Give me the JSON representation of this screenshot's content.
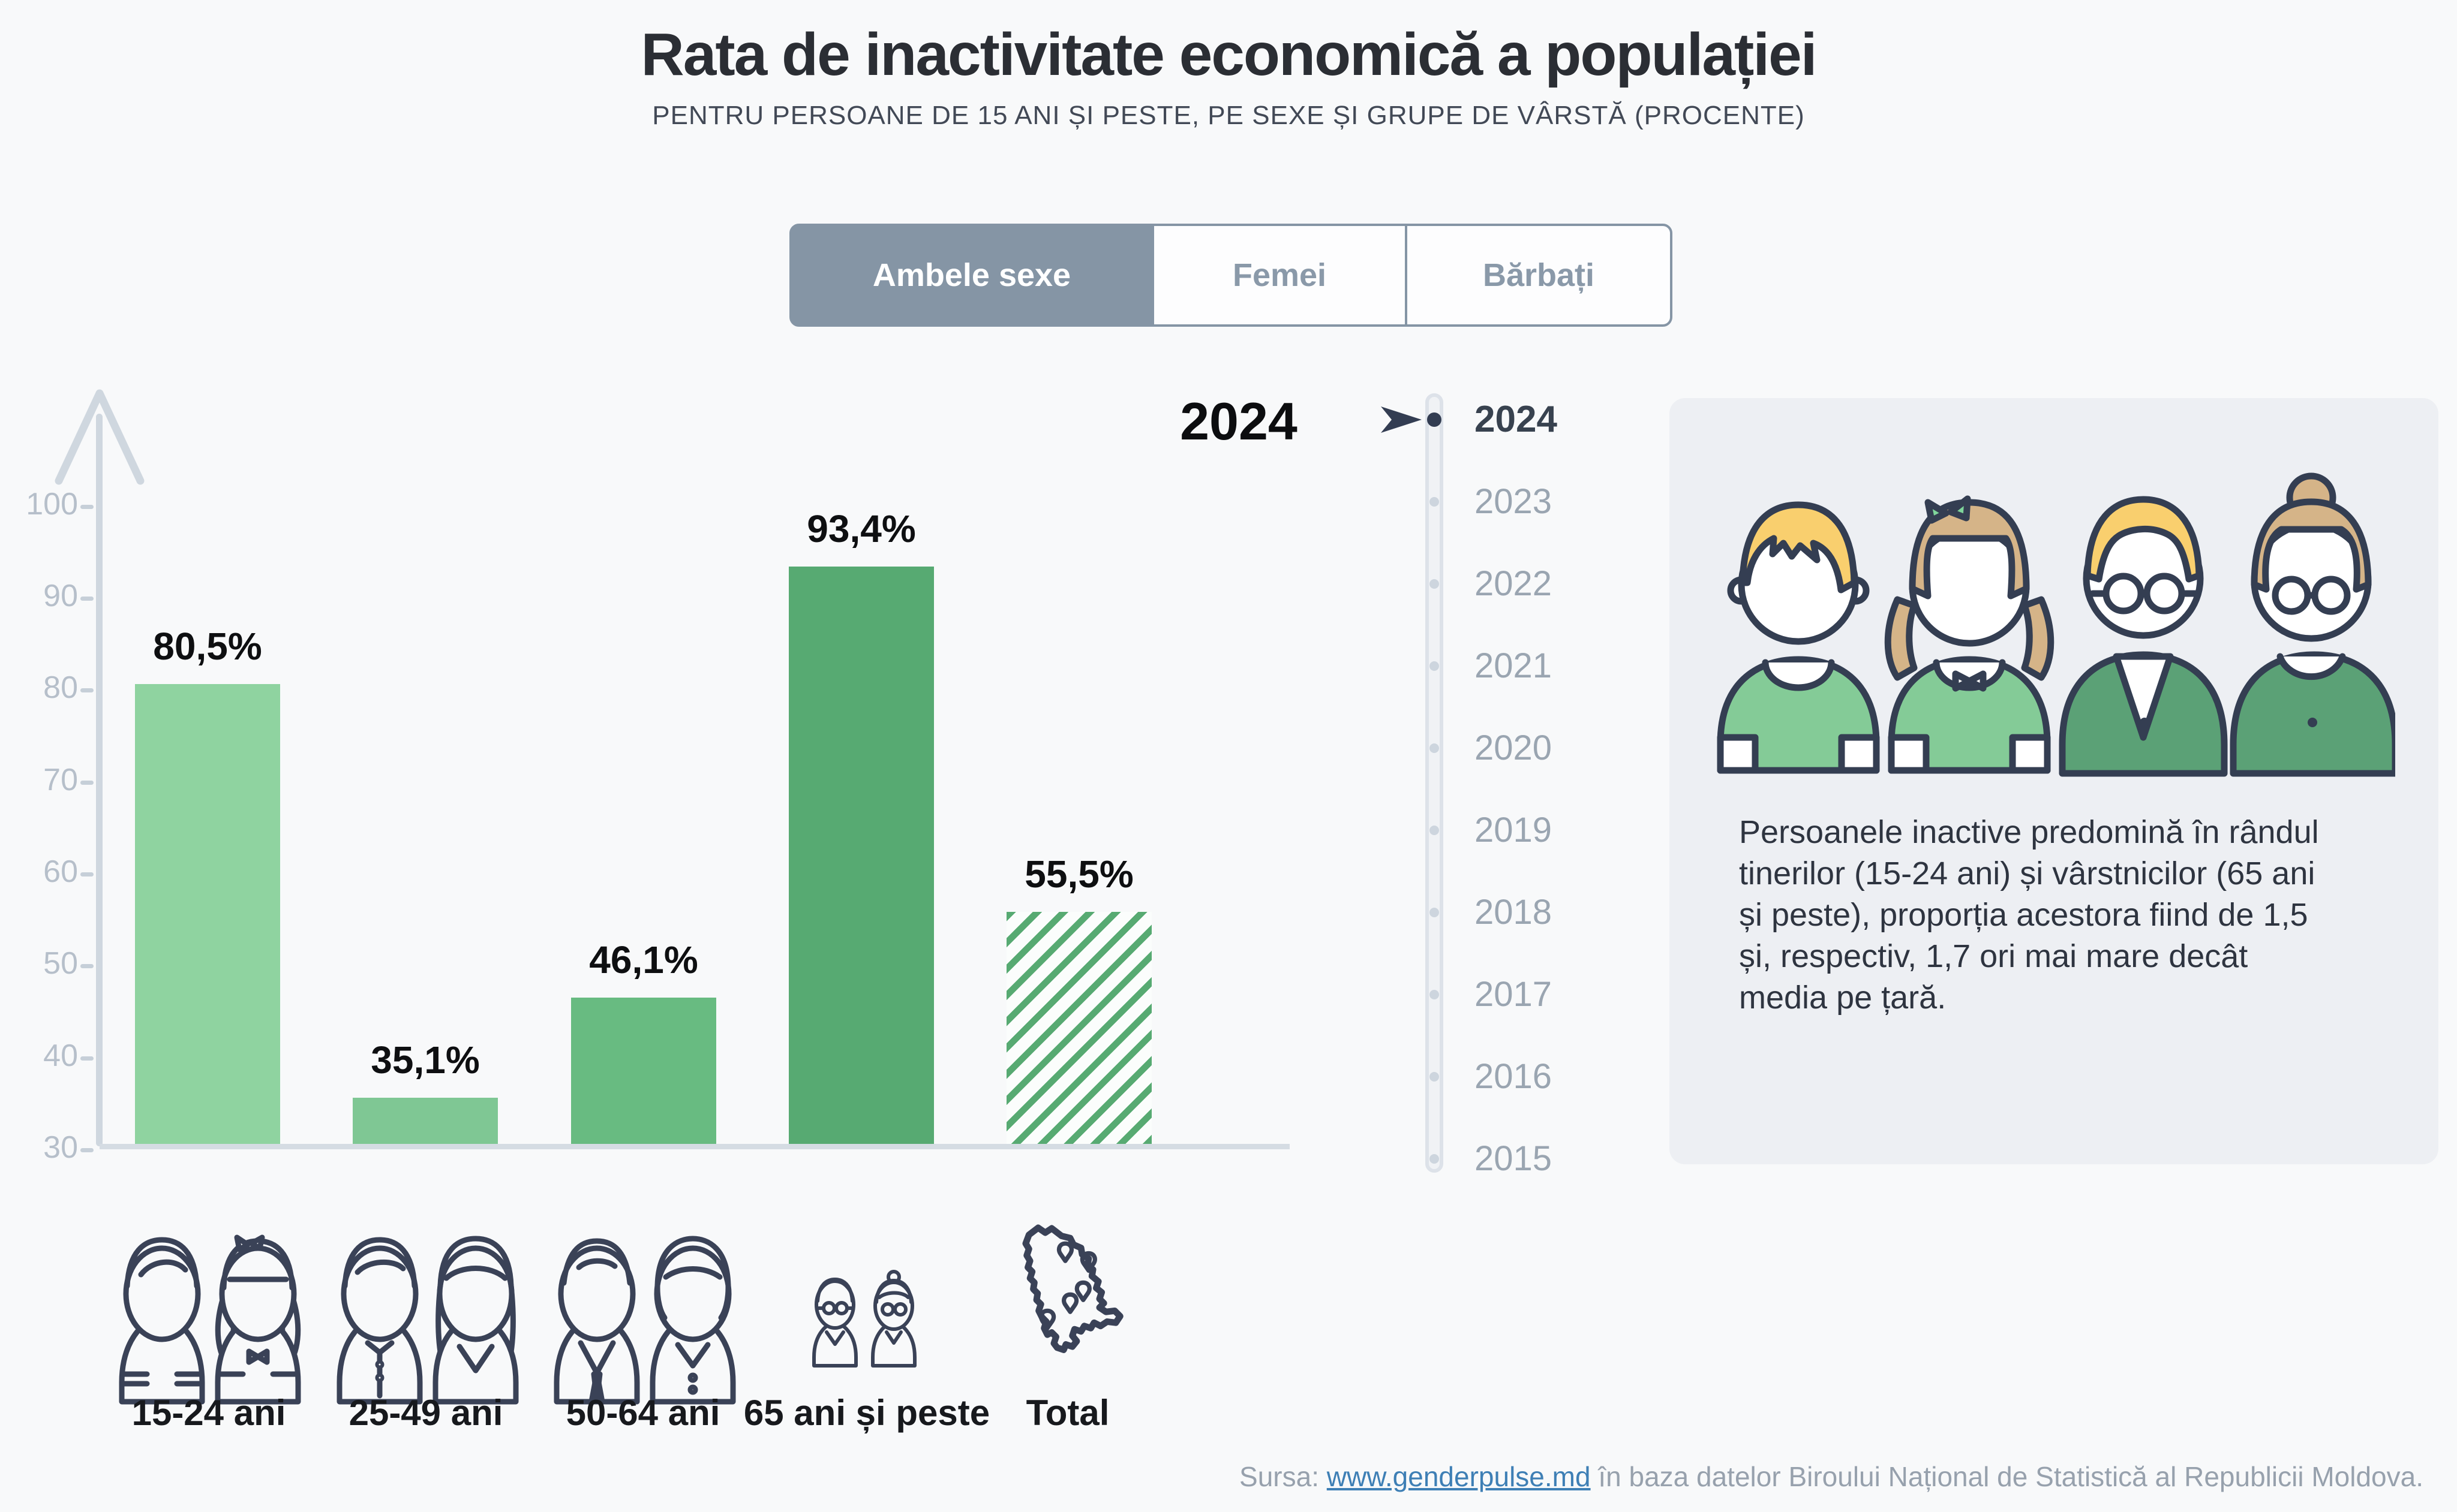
{
  "page": {
    "background": "#f8f9fa"
  },
  "header": {
    "title": "Rata de inactivitate economică a populației",
    "subtitle": "PENTRU PERSOANE DE 15 ANI ȘI PESTE, PE SEXE ȘI GRUPE DE VÂRSTĂ (PROCENTE)"
  },
  "tabs": {
    "items": [
      {
        "label": "Ambele sexe",
        "active": true
      },
      {
        "label": "Femei",
        "active": false
      },
      {
        "label": "Bărbați",
        "active": false
      }
    ]
  },
  "chart_data": {
    "type": "bar",
    "year": "2024",
    "categories": [
      "15-24 ani",
      "25-49 ani",
      "50-64 ani",
      "65 ani și peste",
      "Total"
    ],
    "values": [
      80.5,
      35.1,
      46.1,
      93.4,
      55.5
    ],
    "value_labels": [
      "80,5%",
      "35,1%",
      "46,1%",
      "93,4%",
      "55,5%"
    ],
    "bar_colors": [
      "#8fd3a0",
      "#7fc794",
      "#68bb81",
      "#57aa72",
      "#57aa72"
    ],
    "hatched_indices": [
      4
    ],
    "ylim": [
      30,
      100
    ],
    "yticks": [
      100,
      90,
      80,
      70,
      60,
      50,
      40,
      30
    ],
    "grid": "off",
    "legend": "none",
    "unit": "%"
  },
  "timeline": {
    "years": [
      "2024",
      "2023",
      "2022",
      "2021",
      "2020",
      "2019",
      "2018",
      "2017",
      "2016",
      "2015"
    ],
    "active_year": "2024"
  },
  "infobox": {
    "text": "Persoanele inactive predomină în rândul tinerilor (15-24 ani) și vârstnicilor (65 ani și peste), proporția acestora fiind de 1,5 și, respectiv, 1,7 ori mai mare decât media pe țară."
  },
  "footer": {
    "source_prefix": "Sursa: ",
    "source_link": "www.genderpulse.md",
    "source_suffix": " în baza datelor Biroului Național de Statistică al Republicii Moldova."
  },
  "colors": {
    "active_tab": "#8595a5",
    "axis": "#cfd7df",
    "tick_text": "#b6bfca",
    "navy_outline": "#343e52",
    "link_blue": "#3e7fb5",
    "hair_yellow": "#f9cf6e",
    "hair_tan": "#d5b488",
    "shirt_light_green": "#84cb97",
    "cardigan_green": "#5ba176",
    "card_background": "#edeff3"
  }
}
